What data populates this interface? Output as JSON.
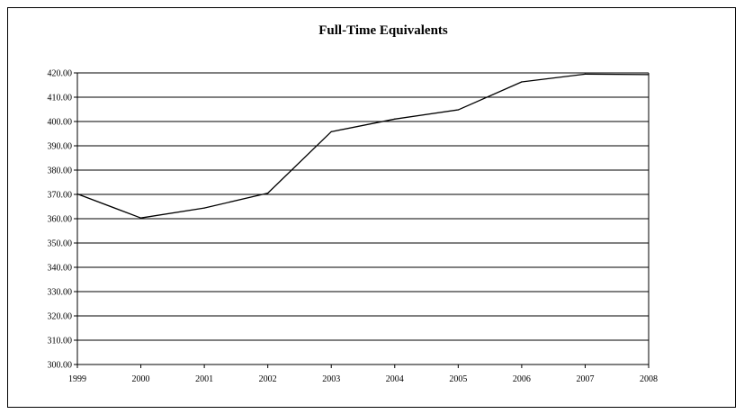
{
  "chart_data": {
    "type": "line",
    "title": "Full-Time Equivalents",
    "xlabel": "",
    "ylabel": "",
    "x": [
      "1999",
      "2000",
      "2001",
      "2002",
      "2003",
      "2004",
      "2005",
      "2006",
      "2007",
      "2008"
    ],
    "series": [
      {
        "values": [
          370.2,
          360.3,
          364.4,
          370.5,
          395.8,
          401.0,
          404.8,
          416.3,
          419.5,
          419.3
        ]
      }
    ],
    "ylim": [
      300,
      420
    ],
    "ytick_step": 10,
    "ytick_decimals": 2,
    "grid": "horizontal",
    "legend": "none",
    "line_color": "#000000"
  }
}
